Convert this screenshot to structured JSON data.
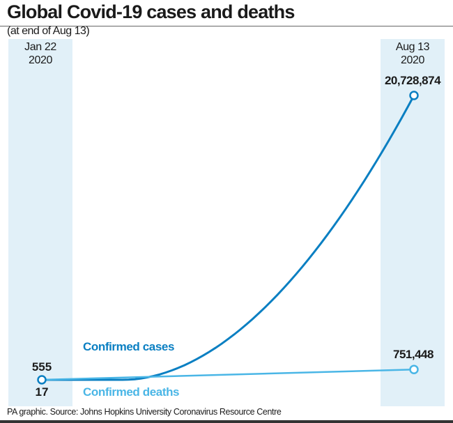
{
  "chart_data": {
    "type": "line",
    "title": "Global Covid-19 cases and deaths",
    "subtitle": "(at end of Aug 13)",
    "x": [
      "Jan 22 2020",
      "Aug 13 2020"
    ],
    "x_labels": [
      {
        "line1": "Jan 22",
        "line2": "2020"
      },
      {
        "line1": "Aug 13",
        "line2": "2020"
      }
    ],
    "series": [
      {
        "name": "Confirmed cases",
        "color": "#0a7fc2",
        "values": [
          555,
          20728874
        ],
        "labels": [
          "555",
          "20,728,874"
        ]
      },
      {
        "name": "Confirmed deaths",
        "color": "#4ab6e6",
        "values": [
          17,
          751448
        ],
        "labels": [
          "17",
          "751,448"
        ]
      }
    ],
    "ylim": [
      0,
      20728874
    ],
    "grid": false,
    "source": "PA graphic. Source: Johns Hopkins University Coronavirus Resource Centre"
  }
}
